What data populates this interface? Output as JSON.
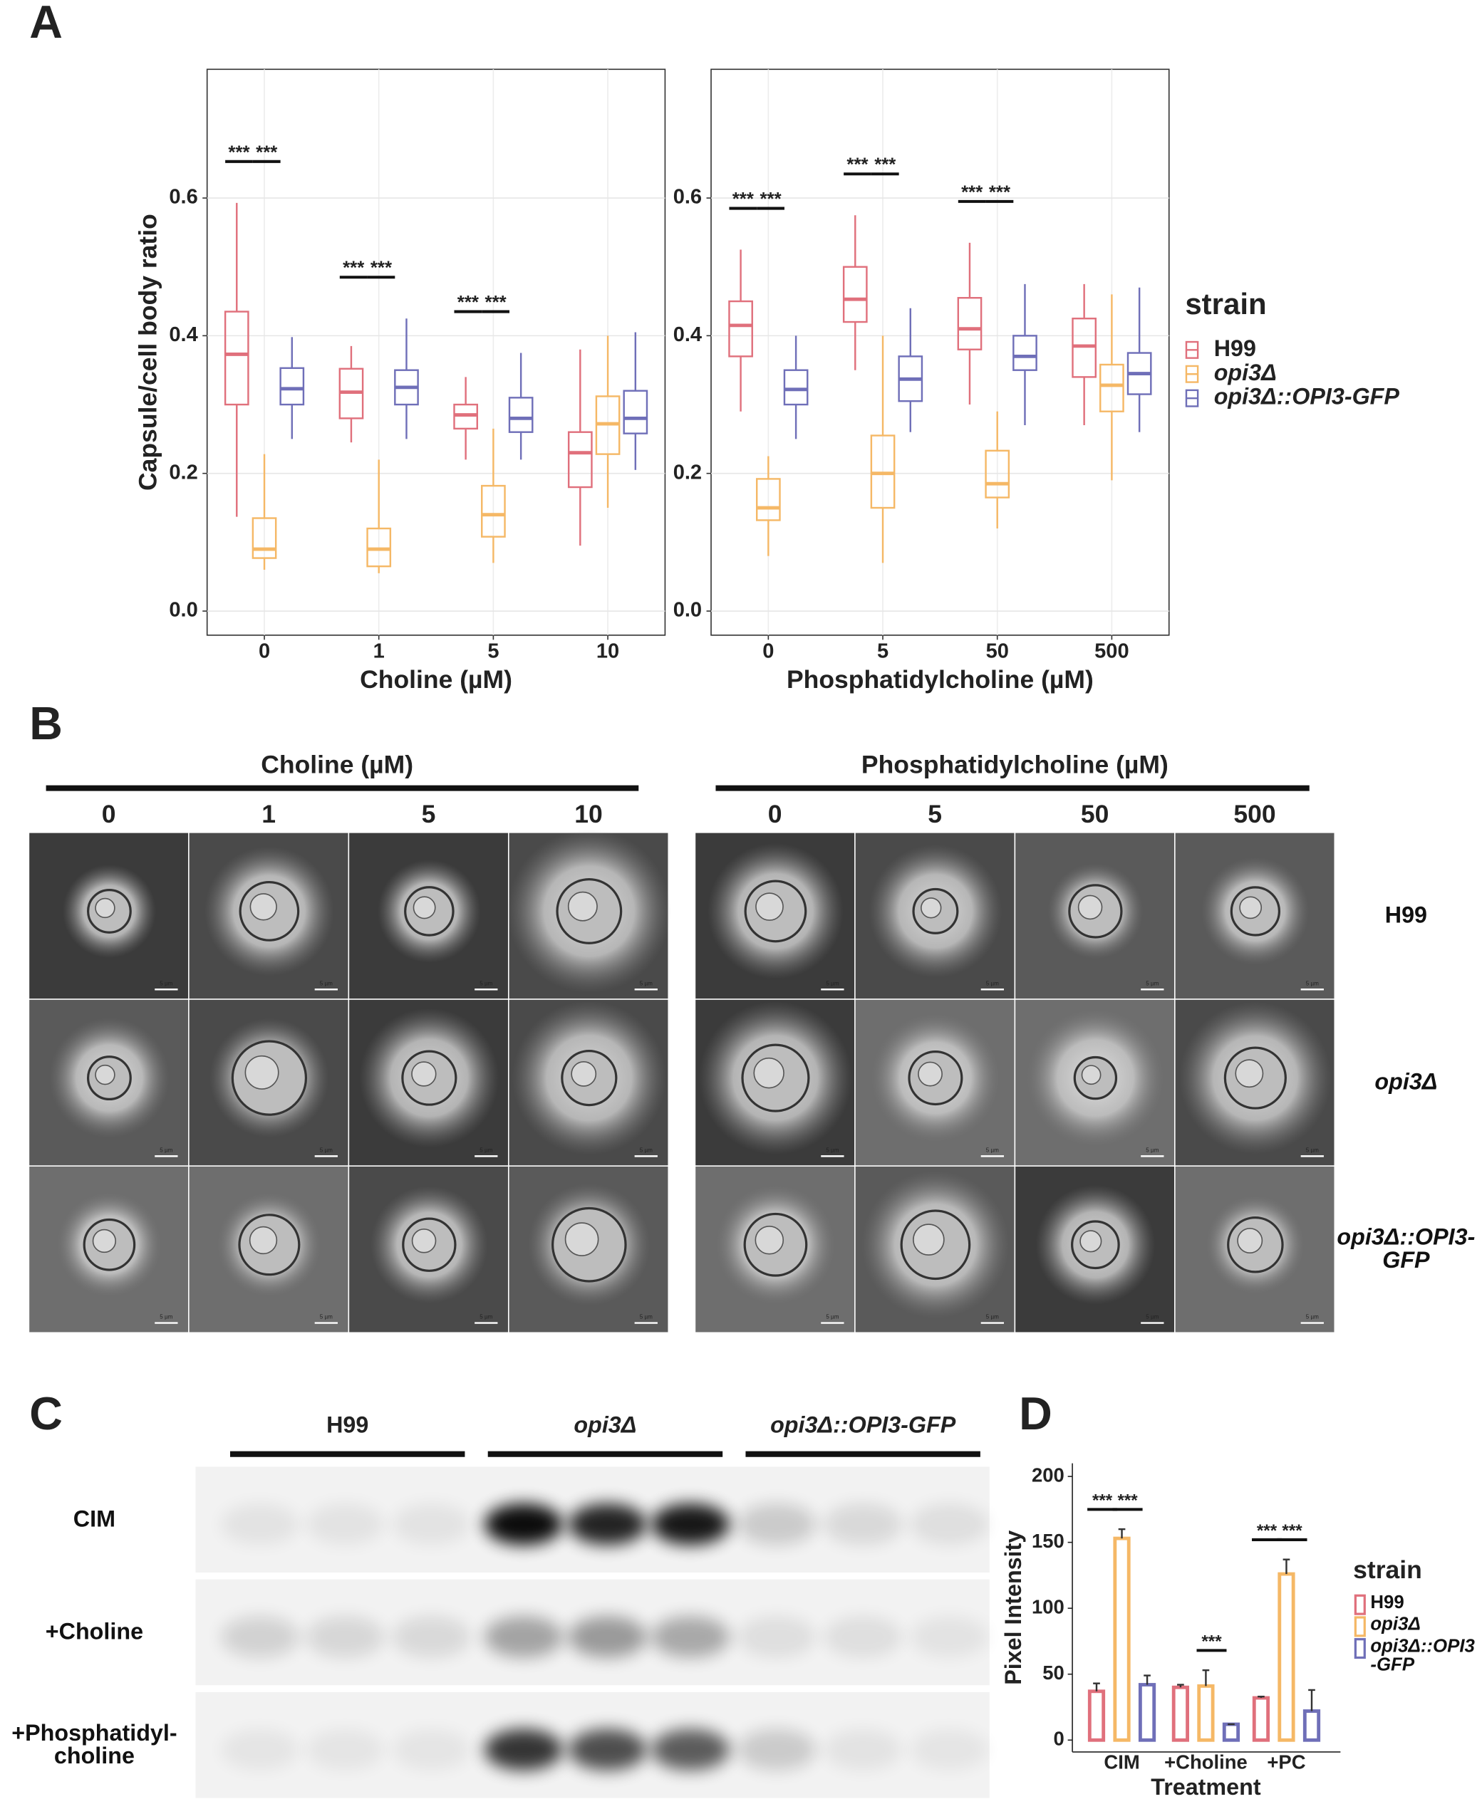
{
  "panel_labels": [
    "A",
    "B",
    "C",
    "D"
  ],
  "chart_data": [
    {
      "type": "box",
      "y_label": "Capsule/cell body ratio",
      "x_label": "Choline (µM)",
      "categories": [
        "0",
        "1",
        "5",
        "10"
      ],
      "ylim": [
        -0.035,
        0.787
      ],
      "yticks": [
        {
          "value": 0,
          "label": "0.0"
        },
        0.2,
        0.4,
        0.6
      ],
      "grid": true,
      "series": [
        {
          "color": "#e0707c",
          "values": [
            {
              "low": 0.137,
              "q1": 0.3,
              "median": 0.373,
              "q3": 0.435,
              "high": 0.593
            },
            {
              "low": 0.245,
              "q1": 0.28,
              "median": 0.318,
              "q3": 0.352,
              "high": 0.385
            },
            {
              "low": 0.22,
              "q1": 0.265,
              "median": 0.285,
              "q3": 0.3,
              "high": 0.34
            },
            {
              "low": 0.095,
              "q1": 0.18,
              "median": 0.23,
              "q3": 0.26,
              "high": 0.38
            }
          ]
        },
        {
          "color": "#f5b866",
          "values": [
            {
              "low": 0.06,
              "q1": 0.077,
              "median": 0.09,
              "q3": 0.135,
              "high": 0.228
            },
            {
              "low": 0.055,
              "q1": 0.065,
              "median": 0.09,
              "q3": 0.12,
              "high": 0.22
            },
            {
              "low": 0.07,
              "q1": 0.108,
              "median": 0.14,
              "q3": 0.182,
              "high": 0.265
            },
            {
              "low": 0.15,
              "q1": 0.228,
              "median": 0.272,
              "q3": 0.312,
              "high": 0.4
            }
          ]
        },
        {
          "color": "#6f6fb8",
          "values": [
            {
              "low": 0.25,
              "q1": 0.3,
              "median": 0.323,
              "q3": 0.353,
              "high": 0.398
            },
            {
              "low": 0.25,
              "q1": 0.3,
              "median": 0.325,
              "q3": 0.35,
              "high": 0.425
            },
            {
              "low": 0.22,
              "q1": 0.26,
              "median": 0.28,
              "q3": 0.31,
              "high": 0.375
            },
            {
              "low": 0.205,
              "q1": 0.258,
              "median": 0.28,
              "q3": 0.32,
              "high": 0.405
            }
          ]
        }
      ],
      "significance": [
        [
          "***",
          "***"
        ],
        [
          "***",
          "***"
        ],
        [
          "***",
          "***"
        ],
        [
          null,
          null
        ]
      ]
    },
    {
      "type": "box",
      "x_label": "Phosphatidylcholine (µM)",
      "categories": [
        "0",
        "5",
        "50",
        "500"
      ],
      "ylim": [
        -0.035,
        0.787
      ],
      "yticks": [
        {
          "value": 0,
          "label": "0.0"
        },
        0.2,
        0.4,
        0.6
      ],
      "grid": true,
      "legend_title": "strain",
      "legend_position": "right",
      "series": [
        {
          "name": "H99",
          "color": "#e0707c",
          "values": [
            {
              "low": 0.29,
              "q1": 0.37,
              "median": 0.415,
              "q3": 0.45,
              "high": 0.525
            },
            {
              "low": 0.35,
              "q1": 0.42,
              "median": 0.453,
              "q3": 0.5,
              "high": 0.575
            },
            {
              "low": 0.3,
              "q1": 0.38,
              "median": 0.41,
              "q3": 0.455,
              "high": 0.535
            },
            {
              "low": 0.27,
              "q1": 0.34,
              "median": 0.385,
              "q3": 0.425,
              "high": 0.475
            }
          ]
        },
        {
          "name": "opi3Δ",
          "color": "#f5b866",
          "values": [
            {
              "low": 0.08,
              "q1": 0.132,
              "median": 0.15,
              "q3": 0.192,
              "high": 0.225
            },
            {
              "low": 0.07,
              "q1": 0.15,
              "median": 0.2,
              "q3": 0.255,
              "high": 0.4
            },
            {
              "low": 0.12,
              "q1": 0.165,
              "median": 0.185,
              "q3": 0.233,
              "high": 0.29
            },
            {
              "low": 0.19,
              "q1": 0.29,
              "median": 0.328,
              "q3": 0.358,
              "high": 0.46
            }
          ]
        },
        {
          "name": "opi3Δ::OPI3-GFP",
          "color": "#6f6fb8",
          "values": [
            {
              "low": 0.25,
              "q1": 0.3,
              "median": 0.322,
              "q3": 0.35,
              "high": 0.4
            },
            {
              "low": 0.26,
              "q1": 0.305,
              "median": 0.337,
              "q3": 0.37,
              "high": 0.44
            },
            {
              "low": 0.27,
              "q1": 0.35,
              "median": 0.37,
              "q3": 0.4,
              "high": 0.475
            },
            {
              "low": 0.26,
              "q1": 0.315,
              "median": 0.345,
              "q3": 0.375,
              "high": 0.47
            }
          ]
        }
      ],
      "significance": [
        [
          "***",
          "***"
        ],
        [
          "***",
          "***"
        ],
        [
          "***",
          "***"
        ],
        [
          null,
          null
        ]
      ]
    },
    {
      "type": "bar",
      "y_label": "Pixel Intensity",
      "x_label": "Treatment",
      "categories": [
        "CIM",
        "+Choline",
        "+PC"
      ],
      "ylim": [
        -9,
        210
      ],
      "yticks": [
        0,
        50,
        100,
        150,
        200
      ],
      "legend_title": "strain",
      "legend_position": "right",
      "series": [
        {
          "name": "H99",
          "color": "#e0707c",
          "values": [
            37,
            40,
            32
          ],
          "errors": [
            6,
            2,
            1
          ]
        },
        {
          "name": "opi3Δ",
          "color": "#f5b866",
          "values": [
            153,
            41,
            126
          ],
          "errors": [
            7,
            12,
            11
          ]
        },
        {
          "name": "opi3Δ::OPI3-GFP",
          "color": "#6f6fb8",
          "values": [
            42,
            12,
            22
          ],
          "errors": [
            7,
            0,
            16
          ]
        }
      ],
      "significance": [
        [
          "***",
          "***"
        ],
        [
          null,
          "***"
        ],
        [
          "***",
          "***"
        ]
      ]
    }
  ],
  "panel_b": {
    "groups": [
      {
        "title": "Choline (µM)",
        "columns": [
          "0",
          "1",
          "5",
          "10"
        ]
      },
      {
        "title": "Phosphatidylcholine (µM)",
        "columns": [
          "0",
          "5",
          "50",
          "500"
        ]
      }
    ],
    "rows": [
      "H99",
      "opi3Δ",
      "opi3Δ::OPI3-GFP"
    ],
    "scale_bar": "5 µm"
  },
  "panel_c": {
    "groups": [
      "H99",
      "opi3Δ",
      "opi3Δ::OPI3-GFP"
    ],
    "rows": [
      "CIM",
      "+Choline",
      "+Phosphatidyl-choline"
    ]
  }
}
